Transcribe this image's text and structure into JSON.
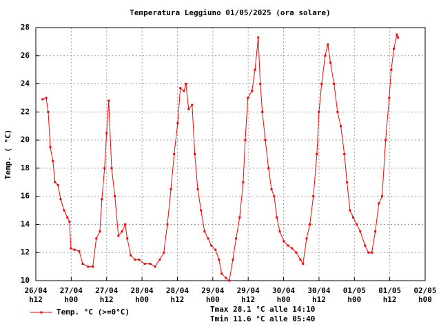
{
  "chart_data": {
    "type": "line",
    "title": "Temperatura Leggiuno 01/05/2025 (ora solare)",
    "y_label": "Temp. ( °C)",
    "annotations": [
      "Tmax 28.1 °C alle 14:10",
      "Tmin 11.6 °C alle 05:40"
    ],
    "xlim": [
      12,
      144
    ],
    "xticks": [
      {
        "value": 12,
        "label": "26/04 h12"
      },
      {
        "value": 24,
        "label": "27/04 h00"
      },
      {
        "value": 36,
        "label": "27/04 h12"
      },
      {
        "value": 48,
        "label": "28/04 h00"
      },
      {
        "value": 60,
        "label": "28/04 h12"
      },
      {
        "value": 72,
        "label": "29/04 h00"
      },
      {
        "value": 84,
        "label": "29/04 h12"
      },
      {
        "value": 96,
        "label": "30/04 h00"
      },
      {
        "value": 108,
        "label": "30/04 h12"
      },
      {
        "value": 120,
        "label": "01/05 h00"
      },
      {
        "value": 132,
        "label": "01/05 h12"
      },
      {
        "value": 144,
        "label": "02/05 h00"
      }
    ],
    "ylim": [
      10,
      28
    ],
    "yticks": [
      10,
      12,
      14,
      16,
      18,
      20,
      22,
      24,
      26,
      28
    ],
    "grid": true,
    "legend": "bottom-left",
    "x": [
      14.3,
      15.5,
      16.2,
      16.9,
      17.8,
      18.5,
      19.5,
      20.4,
      21.6,
      22.7,
      23.4,
      23.9,
      25.1,
      26.7,
      27.9,
      29.7,
      31.3,
      32.5,
      33.7,
      34.4,
      35.3,
      36.0,
      36.7,
      37.7,
      38.8,
      40.0,
      41.2,
      42.3,
      43.0,
      44.2,
      45.6,
      47.0,
      48.9,
      50.8,
      52.4,
      54.0,
      55.4,
      56.6,
      57.8,
      58.9,
      60.1,
      61.0,
      62.2,
      62.9,
      63.8,
      65.0,
      65.9,
      66.9,
      68.0,
      69.2,
      70.4,
      71.5,
      72.9,
      74.1,
      75.0,
      76.4,
      77.6,
      78.8,
      79.9,
      81.1,
      82.3,
      83.0,
      83.9,
      85.3,
      86.3,
      87.4,
      88.1,
      88.8,
      89.8,
      90.9,
      91.9,
      92.8,
      93.7,
      94.7,
      96.1,
      97.5,
      98.9,
      100.3,
      101.7,
      102.6,
      103.8,
      104.9,
      106.1,
      107.3,
      108.0,
      108.9,
      110.1,
      111.0,
      111.9,
      113.1,
      114.3,
      115.4,
      116.6,
      117.5,
      118.5,
      119.6,
      120.8,
      122.0,
      123.6,
      124.8,
      125.9,
      127.1,
      128.3,
      129.4,
      130.6,
      131.8,
      132.5,
      133.4,
      134.4,
      134.8
    ],
    "series": [
      {
        "name": "Temp. °C (>=0°C)",
        "color": "#ff0000",
        "values": [
          22.9,
          23.0,
          22.0,
          19.5,
          18.5,
          17.0,
          16.8,
          15.8,
          15.0,
          14.5,
          14.2,
          12.3,
          12.2,
          12.1,
          11.2,
          11.0,
          11.0,
          13.0,
          13.5,
          15.8,
          18.0,
          20.5,
          22.8,
          18.0,
          16.0,
          13.2,
          13.5,
          14.0,
          13.0,
          11.8,
          11.5,
          11.5,
          11.2,
          11.2,
          11.0,
          11.5,
          12.0,
          14.0,
          16.5,
          19.0,
          21.2,
          23.7,
          23.5,
          24.0,
          22.2,
          22.5,
          19.0,
          16.5,
          15.0,
          13.5,
          13.0,
          12.5,
          12.2,
          11.5,
          10.5,
          10.2,
          10.0,
          11.5,
          13.0,
          14.5,
          17.0,
          20.0,
          23.0,
          23.5,
          25.0,
          27.3,
          24.0,
          22.0,
          20.0,
          18.0,
          16.5,
          16.0,
          14.5,
          13.5,
          12.8,
          12.5,
          12.3,
          12.0,
          11.5,
          11.2,
          13.0,
          14.0,
          16.0,
          19.0,
          22.0,
          24.0,
          26.0,
          26.8,
          25.5,
          24.0,
          22.0,
          21.0,
          19.0,
          17.0,
          15.0,
          14.5,
          14.0,
          13.5,
          12.5,
          12.0,
          12.0,
          13.5,
          15.5,
          16.0,
          20.0,
          23.0,
          25.0,
          26.5,
          27.5,
          27.3
        ]
      }
    ]
  }
}
